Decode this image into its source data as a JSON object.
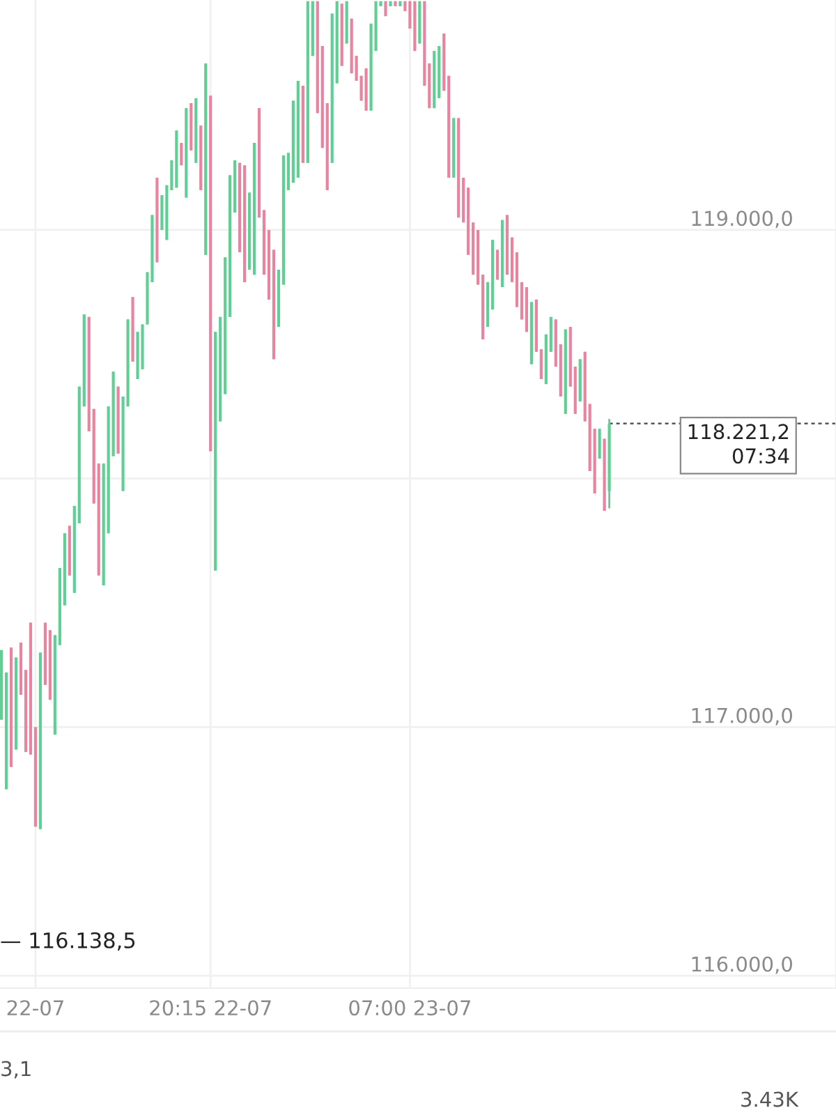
{
  "chart_data": {
    "type": "candlestick",
    "categories": [
      null,
      null,
      null,
      null,
      null,
      null,
      null,
      "22-07",
      null,
      null,
      null,
      null,
      null,
      null,
      null,
      null,
      null,
      null,
      null,
      null,
      null,
      null,
      null,
      null,
      null,
      null,
      null,
      null,
      null,
      null,
      null,
      null,
      null,
      null,
      null,
      null,
      null,
      null,
      null,
      null,
      null,
      null,
      null,
      "20:15 22-07",
      null,
      null,
      null,
      null,
      null,
      null,
      null,
      null,
      null,
      null,
      null,
      null,
      null,
      null,
      null,
      null,
      null,
      null,
      null,
      null,
      null,
      null,
      null,
      null,
      null,
      null,
      null,
      null,
      null,
      null,
      null,
      null,
      null,
      null,
      null,
      null,
      null,
      null,
      null,
      null,
      "07:00 23-07",
      null,
      null,
      null,
      null,
      null,
      null,
      null,
      null,
      null,
      null,
      null,
      null,
      null,
      null,
      null,
      null,
      null,
      null,
      null,
      null,
      null,
      null,
      null,
      null,
      null,
      null,
      null,
      null,
      null,
      null,
      null,
      null,
      null,
      null,
      null,
      null,
      null,
      null,
      null,
      null,
      null
    ],
    "ohlc": [
      [
        117030,
        117310,
        117030,
        117310
      ],
      [
        116750,
        117220,
        116750,
        117220
      ],
      [
        117320,
        117320,
        116840,
        116840
      ],
      [
        116910,
        117280,
        116910,
        117280
      ],
      [
        117340,
        117340,
        117130,
        117130
      ],
      [
        117230,
        117230,
        116900,
        116900
      ],
      [
        117420,
        117420,
        116890,
        116890
      ],
      [
        117000,
        117000,
        116600,
        116600
      ],
      [
        116590,
        117300,
        116590,
        117300
      ],
      [
        117420,
        117420,
        117170,
        117170
      ],
      [
        117390,
        117390,
        117110,
        117110
      ],
      [
        116970,
        117370,
        116970,
        117370
      ],
      [
        117330,
        117640,
        117330,
        117640
      ],
      [
        117490,
        117780,
        117490,
        117780
      ],
      [
        117810,
        117810,
        117610,
        117610
      ],
      [
        117540,
        117890,
        117540,
        117890
      ],
      [
        117820,
        118370,
        117820,
        118370
      ],
      [
        118290,
        118660,
        118290,
        118660
      ],
      [
        118650,
        118650,
        118190,
        118190
      ],
      [
        118280,
        118280,
        117900,
        117900
      ],
      [
        118060,
        118060,
        117610,
        117610
      ],
      [
        117570,
        118060,
        117570,
        118060
      ],
      [
        117780,
        118290,
        117780,
        118290
      ],
      [
        118090,
        118430,
        118090,
        118430
      ],
      [
        118370,
        118370,
        118100,
        118100
      ],
      [
        117950,
        118330,
        117950,
        118330
      ],
      [
        118290,
        118640,
        118290,
        118640
      ],
      [
        118730,
        118730,
        118470,
        118470
      ],
      [
        118400,
        118590,
        118400,
        118590
      ],
      [
        118440,
        118620,
        118440,
        118620
      ],
      [
        118620,
        118830,
        118620,
        118830
      ],
      [
        118790,
        119060,
        118790,
        119060
      ],
      [
        119210,
        119210,
        118870,
        118870
      ],
      [
        119000,
        119140,
        119000,
        119140
      ],
      [
        118960,
        119180,
        118960,
        119180
      ],
      [
        119160,
        119280,
        119160,
        119280
      ],
      [
        119170,
        119400,
        119170,
        119400
      ],
      [
        119350,
        119350,
        119260,
        119260
      ],
      [
        119130,
        119490,
        119130,
        119490
      ],
      [
        119510,
        119510,
        119320,
        119320
      ],
      [
        119270,
        119530,
        119270,
        119530
      ],
      [
        119420,
        119420,
        119160,
        119160
      ],
      [
        118900,
        119670,
        118900,
        119670
      ],
      [
        119540,
        119540,
        118110,
        118110
      ],
      [
        117630,
        118590,
        117630,
        118590
      ],
      [
        118230,
        118650,
        118230,
        118650
      ],
      [
        118340,
        118890,
        118340,
        118890
      ],
      [
        118650,
        119220,
        118650,
        119220
      ],
      [
        119070,
        119280,
        119070,
        119280
      ],
      [
        119270,
        119270,
        118910,
        118910
      ],
      [
        119260,
        119260,
        118790,
        118790
      ],
      [
        118840,
        119150,
        118840,
        119150
      ],
      [
        118820,
        119350,
        118820,
        119350
      ],
      [
        119490,
        119490,
        119050,
        119050
      ],
      [
        119080,
        119080,
        118820,
        118820
      ],
      [
        119000,
        119000,
        118720,
        118720
      ],
      [
        118920,
        118920,
        118480,
        118480
      ],
      [
        118610,
        118840,
        118610,
        118840
      ],
      [
        118780,
        119300,
        118780,
        119300
      ],
      [
        119160,
        119310,
        119160,
        119310
      ],
      [
        119190,
        119520,
        119190,
        119520
      ],
      [
        119210,
        119600,
        119210,
        119600
      ],
      [
        119580,
        119580,
        119270,
        119270
      ],
      [
        119270,
        119920,
        119270,
        119920
      ],
      [
        119700,
        119920,
        119700,
        119920
      ],
      [
        119920,
        119920,
        119470,
        119470
      ],
      [
        119740,
        119740,
        119330,
        119330
      ],
      [
        119510,
        119510,
        119160,
        119160
      ],
      [
        119270,
        119870,
        119270,
        119870
      ],
      [
        119590,
        119920,
        119590,
        119920
      ],
      [
        119910,
        119910,
        119660,
        119660
      ],
      [
        119750,
        119920,
        119750,
        119920
      ],
      [
        119850,
        119850,
        119630,
        119630
      ],
      [
        119700,
        119700,
        119600,
        119600
      ],
      [
        119620,
        119620,
        119520,
        119520
      ],
      [
        119650,
        119650,
        119480,
        119480
      ],
      [
        119480,
        119830,
        119480,
        119830
      ],
      [
        119720,
        119920,
        119720,
        119920
      ],
      [
        119900,
        119920,
        119900,
        119920
      ],
      [
        119920,
        119920,
        119860,
        119860
      ],
      [
        119900,
        119920,
        119900,
        119920
      ],
      [
        119920,
        119920,
        119900,
        119900
      ],
      [
        119900,
        119920,
        119900,
        119920
      ],
      [
        119920,
        119920,
        119880,
        119880
      ],
      [
        119920,
        119920,
        119810,
        119810
      ],
      [
        119920,
        119920,
        119720,
        119720
      ],
      [
        119750,
        119920,
        119750,
        119920
      ],
      [
        119920,
        119920,
        119580,
        119580
      ],
      [
        119670,
        119670,
        119490,
        119490
      ],
      [
        119490,
        119720,
        119490,
        119720
      ],
      [
        119530,
        119740,
        119530,
        119740
      ],
      [
        119790,
        119790,
        119560,
        119560
      ],
      [
        119620,
        119620,
        119210,
        119210
      ],
      [
        119210,
        119450,
        119210,
        119450
      ],
      [
        119450,
        119450,
        119050,
        119050
      ],
      [
        119210,
        119210,
        119030,
        119030
      ],
      [
        119170,
        119170,
        118900,
        118900
      ],
      [
        119030,
        119030,
        118820,
        118820
      ],
      [
        119000,
        119000,
        118780,
        118780
      ],
      [
        118820,
        118820,
        118560,
        118560
      ],
      [
        118610,
        118790,
        118610,
        118790
      ],
      [
        118680,
        118960,
        118680,
        118960
      ],
      [
        118920,
        118920,
        118800,
        118800
      ],
      [
        118770,
        119040,
        118770,
        119040
      ],
      [
        119060,
        119060,
        118820,
        118820
      ],
      [
        118970,
        118970,
        118790,
        118790
      ],
      [
        118910,
        118910,
        118690,
        118690
      ],
      [
        118790,
        118790,
        118640,
        118640
      ],
      [
        118770,
        118770,
        118590,
        118590
      ],
      [
        118460,
        118710,
        118460,
        118710
      ],
      [
        118720,
        118720,
        118510,
        118510
      ],
      [
        118520,
        118520,
        118400,
        118400
      ],
      [
        118380,
        118580,
        118380,
        118580
      ],
      [
        118510,
        118650,
        118510,
        118650
      ],
      [
        118640,
        118640,
        118450,
        118450
      ],
      [
        118540,
        118540,
        118330,
        118330
      ],
      [
        118260,
        118600,
        118260,
        118600
      ],
      [
        118610,
        118610,
        118370,
        118370
      ],
      [
        118450,
        118450,
        118260,
        118260
      ],
      [
        118310,
        118480,
        118310,
        118480
      ],
      [
        118510,
        118510,
        118230,
        118230
      ],
      [
        118300,
        118300,
        118030,
        118030
      ],
      [
        118200,
        118200,
        117940,
        117940
      ],
      [
        118080,
        118200,
        118080,
        118200
      ],
      [
        118160,
        118160,
        117870,
        117870
      ],
      [
        117950,
        118240,
        117880,
        118221.2
      ]
    ],
    "colors": [
      "#5fcf94",
      "#5fcf94",
      "#e8849f",
      "#5fcf94",
      "#e8849f",
      "#e8849f",
      "#e8849f",
      "#e8849f",
      "#5fcf94",
      "#e8849f",
      "#e8849f",
      "#5fcf94",
      "#5fcf94",
      "#5fcf94",
      "#e8849f",
      "#5fcf94",
      "#5fcf94",
      "#5fcf94",
      "#e8849f",
      "#e8849f",
      "#e8849f",
      "#5fcf94",
      "#5fcf94",
      "#5fcf94",
      "#e8849f",
      "#5fcf94",
      "#5fcf94",
      "#e8849f",
      "#5fcf94",
      "#5fcf94",
      "#5fcf94",
      "#5fcf94",
      "#e8849f",
      "#5fcf94",
      "#5fcf94",
      "#5fcf94",
      "#5fcf94",
      "#e8849f",
      "#5fcf94",
      "#e8849f",
      "#5fcf94",
      "#e8849f",
      "#5fcf94",
      "#e8849f",
      "#5fcf94",
      "#5fcf94",
      "#5fcf94",
      "#5fcf94",
      "#5fcf94",
      "#e8849f",
      "#e8849f",
      "#5fcf94",
      "#5fcf94",
      "#e8849f",
      "#e8849f",
      "#e8849f",
      "#e8849f",
      "#5fcf94",
      "#5fcf94",
      "#5fcf94",
      "#5fcf94",
      "#5fcf94",
      "#e8849f",
      "#5fcf94",
      "#5fcf94",
      "#e8849f",
      "#e8849f",
      "#e8849f",
      "#5fcf94",
      "#5fcf94",
      "#e8849f",
      "#5fcf94",
      "#e8849f",
      "#e8849f",
      "#e8849f",
      "#e8849f",
      "#5fcf94",
      "#5fcf94",
      "#5fcf94",
      "#e8849f",
      "#5fcf94",
      "#e8849f",
      "#5fcf94",
      "#e8849f",
      "#e8849f",
      "#e8849f",
      "#5fcf94",
      "#e8849f",
      "#e8849f",
      "#5fcf94",
      "#5fcf94",
      "#e8849f",
      "#e8849f",
      "#5fcf94",
      "#e8849f",
      "#e8849f",
      "#e8849f",
      "#e8849f",
      "#e8849f",
      "#e8849f",
      "#5fcf94",
      "#5fcf94",
      "#e8849f",
      "#5fcf94",
      "#e8849f",
      "#e8849f",
      "#e8849f",
      "#e8849f",
      "#e8849f",
      "#5fcf94",
      "#e8849f",
      "#e8849f",
      "#5fcf94",
      "#5fcf94",
      "#e8849f",
      "#e8849f",
      "#5fcf94",
      "#e8849f",
      "#e8849f",
      "#5fcf94",
      "#e8849f",
      "#e8849f",
      "#e8849f",
      "#5fcf94",
      "#e8849f",
      "#5fcf94"
    ],
    "ylim": [
      115950,
      119925
    ],
    "yticks": [
      {
        "value": 116000,
        "label": "116.000,0"
      },
      {
        "value": 117000,
        "label": "117.000,0"
      },
      {
        "value": 118000,
        "label": null
      },
      {
        "value": 119000,
        "label": "119.000,0"
      }
    ],
    "grid": true,
    "ref_lines": [
      {
        "axis": "y",
        "value": 118221.2,
        "label": "118.221,2\n07:34",
        "color": "#555555",
        "line_style": "dashed"
      }
    ],
    "annotations": [
      "— 116.138,5",
      "3,1",
      "3.43K"
    ]
  }
}
